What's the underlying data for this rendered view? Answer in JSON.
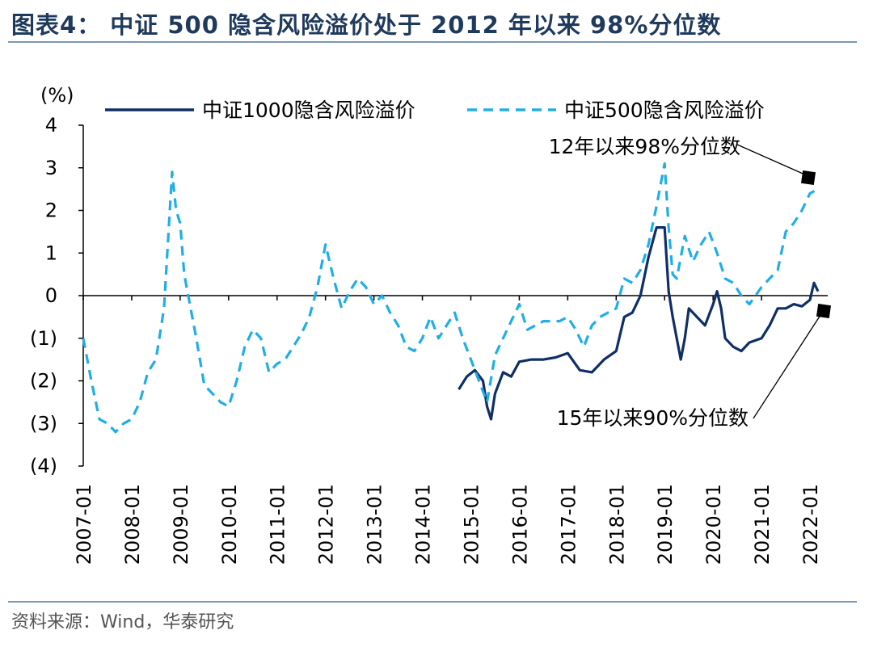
{
  "header": {
    "title": "图表4：  中证 500 隐含风险溢价处于 2012 年以来 98%分位数"
  },
  "footer": {
    "source": "资料来源：Wind，华泰研究"
  },
  "colors": {
    "csi1000": "#0f2f66",
    "csi500": "#20aee6",
    "rule": "#7b98b8",
    "title": "#1f3a5c"
  },
  "chart_data": {
    "type": "line",
    "y_unit_label": "(%)",
    "ylim": [
      -4,
      4
    ],
    "yticks": [
      4,
      3,
      2,
      1,
      0,
      -1,
      -2,
      -3,
      -4
    ],
    "ytick_labels": [
      "4",
      "3",
      "2",
      "1",
      "0",
      "(1)",
      "(2)",
      "(3)",
      "(4)"
    ],
    "xlim": [
      "2007-01",
      "2022-05"
    ],
    "xtick_labels": [
      "2007-01",
      "2008-01",
      "2009-01",
      "2010-01",
      "2011-01",
      "2012-01",
      "2013-01",
      "2014-01",
      "2015-01",
      "2016-01",
      "2017-01",
      "2018-01",
      "2019-01",
      "2020-01",
      "2021-01",
      "2022-01"
    ],
    "legend_position": "top",
    "series": [
      {
        "name": "中证1000隐含风险溢价",
        "style": "solid",
        "points": [
          [
            "2014-10",
            -2.2
          ],
          [
            "2014-12",
            -1.9
          ],
          [
            "2015-02",
            -1.75
          ],
          [
            "2015-04",
            -2.0
          ],
          [
            "2015-05",
            -2.6
          ],
          [
            "2015-06",
            -2.9
          ],
          [
            "2015-07",
            -2.3
          ],
          [
            "2015-09",
            -1.8
          ],
          [
            "2015-11",
            -1.9
          ],
          [
            "2016-01",
            -1.55
          ],
          [
            "2016-04",
            -1.5
          ],
          [
            "2016-07",
            -1.5
          ],
          [
            "2016-10",
            -1.45
          ],
          [
            "2017-01",
            -1.35
          ],
          [
            "2017-04",
            -1.75
          ],
          [
            "2017-07",
            -1.8
          ],
          [
            "2017-10",
            -1.5
          ],
          [
            "2018-01",
            -1.3
          ],
          [
            "2018-03",
            -0.5
          ],
          [
            "2018-05",
            -0.4
          ],
          [
            "2018-07",
            0.0
          ],
          [
            "2018-09",
            0.9
          ],
          [
            "2018-11",
            1.6
          ],
          [
            "2019-01",
            1.6
          ],
          [
            "2019-02",
            0.1
          ],
          [
            "2019-03",
            -0.5
          ],
          [
            "2019-04",
            -1.0
          ],
          [
            "2019-05",
            -1.5
          ],
          [
            "2019-06",
            -1.0
          ],
          [
            "2019-07",
            -0.3
          ],
          [
            "2019-09",
            -0.5
          ],
          [
            "2019-11",
            -0.7
          ],
          [
            "2020-01",
            -0.2
          ],
          [
            "2020-02",
            0.1
          ],
          [
            "2020-03",
            -0.3
          ],
          [
            "2020-04",
            -1.0
          ],
          [
            "2020-06",
            -1.2
          ],
          [
            "2020-08",
            -1.3
          ],
          [
            "2020-10",
            -1.1
          ],
          [
            "2021-01",
            -1.0
          ],
          [
            "2021-03",
            -0.7
          ],
          [
            "2021-05",
            -0.3
          ],
          [
            "2021-07",
            -0.3
          ],
          [
            "2021-09",
            -0.2
          ],
          [
            "2021-11",
            -0.25
          ],
          [
            "2022-01",
            -0.1
          ],
          [
            "2022-02",
            0.3
          ],
          [
            "2022-03",
            0.1
          ]
        ]
      },
      {
        "name": "中证500隐含风险溢价",
        "style": "dashed",
        "points": [
          [
            "2007-01",
            -1.0
          ],
          [
            "2007-03",
            -2.0
          ],
          [
            "2007-05",
            -2.9
          ],
          [
            "2007-07",
            -3.0
          ],
          [
            "2007-09",
            -3.2
          ],
          [
            "2007-11",
            -3.0
          ],
          [
            "2008-01",
            -2.9
          ],
          [
            "2008-03",
            -2.5
          ],
          [
            "2008-05",
            -1.8
          ],
          [
            "2008-07",
            -1.5
          ],
          [
            "2008-09",
            -0.3
          ],
          [
            "2008-10",
            1.3
          ],
          [
            "2008-11",
            2.9
          ],
          [
            "2008-12",
            2.0
          ],
          [
            "2009-01",
            1.7
          ],
          [
            "2009-02",
            0.5
          ],
          [
            "2009-03",
            0.0
          ],
          [
            "2009-05",
            -1.0
          ],
          [
            "2009-07",
            -2.1
          ],
          [
            "2009-09",
            -2.3
          ],
          [
            "2009-11",
            -2.5
          ],
          [
            "2010-01",
            -2.6
          ],
          [
            "2010-03",
            -2.0
          ],
          [
            "2010-05",
            -1.2
          ],
          [
            "2010-07",
            -0.8
          ],
          [
            "2010-09",
            -1.0
          ],
          [
            "2010-11",
            -1.8
          ],
          [
            "2011-01",
            -1.6
          ],
          [
            "2011-03",
            -1.5
          ],
          [
            "2011-05",
            -1.2
          ],
          [
            "2011-07",
            -0.9
          ],
          [
            "2011-09",
            -0.5
          ],
          [
            "2011-11",
            0.2
          ],
          [
            "2012-01",
            1.2
          ],
          [
            "2012-03",
            0.4
          ],
          [
            "2012-05",
            -0.3
          ],
          [
            "2012-07",
            0.1
          ],
          [
            "2012-09",
            0.4
          ],
          [
            "2012-11",
            0.2
          ],
          [
            "2013-01",
            -0.2
          ],
          [
            "2013-03",
            0.0
          ],
          [
            "2013-05",
            -0.4
          ],
          [
            "2013-07",
            -0.7
          ],
          [
            "2013-09",
            -1.2
          ],
          [
            "2013-11",
            -1.3
          ],
          [
            "2014-01",
            -1.0
          ],
          [
            "2014-03",
            -0.5
          ],
          [
            "2014-05",
            -1.0
          ],
          [
            "2014-07",
            -0.7
          ],
          [
            "2014-09",
            -0.4
          ],
          [
            "2014-11",
            -1.0
          ],
          [
            "2015-01",
            -1.5
          ],
          [
            "2015-03",
            -2.0
          ],
          [
            "2015-05",
            -2.5
          ],
          [
            "2015-07",
            -1.4
          ],
          [
            "2015-09",
            -1.0
          ],
          [
            "2015-11",
            -0.6
          ],
          [
            "2016-01",
            -0.2
          ],
          [
            "2016-03",
            -0.8
          ],
          [
            "2016-05",
            -0.7
          ],
          [
            "2016-07",
            -0.6
          ],
          [
            "2016-09",
            -0.6
          ],
          [
            "2016-11",
            -0.6
          ],
          [
            "2017-01",
            -0.5
          ],
          [
            "2017-03",
            -0.8
          ],
          [
            "2017-05",
            -1.2
          ],
          [
            "2017-07",
            -0.7
          ],
          [
            "2017-09",
            -0.5
          ],
          [
            "2017-11",
            -0.4
          ],
          [
            "2018-01",
            -0.3
          ],
          [
            "2018-03",
            0.4
          ],
          [
            "2018-05",
            0.3
          ],
          [
            "2018-07",
            0.6
          ],
          [
            "2018-09",
            1.2
          ],
          [
            "2018-11",
            2.1
          ],
          [
            "2019-01",
            3.1
          ],
          [
            "2019-02",
            1.6
          ],
          [
            "2019-03",
            0.5
          ],
          [
            "2019-04",
            0.4
          ],
          [
            "2019-06",
            1.4
          ],
          [
            "2019-08",
            0.8
          ],
          [
            "2019-10",
            1.2
          ],
          [
            "2019-12",
            1.5
          ],
          [
            "2020-02",
            1.0
          ],
          [
            "2020-04",
            0.4
          ],
          [
            "2020-06",
            0.3
          ],
          [
            "2020-08",
            0.0
          ],
          [
            "2020-10",
            -0.2
          ],
          [
            "2021-01",
            0.2
          ],
          [
            "2021-03",
            0.4
          ],
          [
            "2021-05",
            0.6
          ],
          [
            "2021-07",
            1.5
          ],
          [
            "2021-09",
            1.7
          ],
          [
            "2021-11",
            2.0
          ],
          [
            "2022-01",
            2.4
          ],
          [
            "2022-03",
            2.5
          ]
        ]
      }
    ],
    "annotations": [
      {
        "text": "12年以来98%分位数",
        "target": [
          "2022-03",
          2.6
        ]
      },
      {
        "text": "15年以来90%分位数",
        "target": [
          "2022-03",
          -0.35
        ]
      }
    ]
  }
}
